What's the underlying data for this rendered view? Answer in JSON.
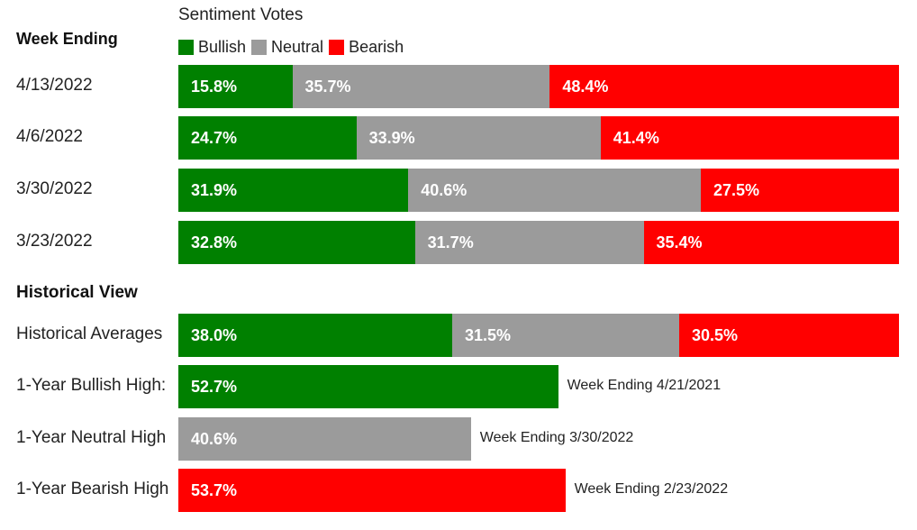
{
  "chart_data": {
    "type": "bar",
    "stacked": true,
    "orientation": "horizontal",
    "title": "Sentiment Votes",
    "colors": {
      "bullish": "#008000",
      "neutral": "#9b9b9b",
      "bearish": "#ff0000"
    },
    "legend": {
      "placement": "top",
      "items": [
        {
          "key": "bullish",
          "label": "Bullish"
        },
        {
          "key": "neutral",
          "label": "Neutral"
        },
        {
          "key": "bearish",
          "label": "Bearish"
        }
      ]
    },
    "weekly": {
      "header": "Week Ending",
      "rows": [
        {
          "label": "4/13/2022",
          "bullish": "15.8%",
          "neutral": "35.7%",
          "bearish": "48.4%",
          "values": [
            15.8,
            35.7,
            48.4
          ]
        },
        {
          "label": "4/6/2022",
          "bullish": "24.7%",
          "neutral": "33.9%",
          "bearish": "41.4%",
          "values": [
            24.7,
            33.9,
            41.4
          ]
        },
        {
          "label": "3/30/2022",
          "bullish": "31.9%",
          "neutral": "40.6%",
          "bearish": "27.5%",
          "values": [
            31.9,
            40.6,
            27.5
          ]
        },
        {
          "label": "3/23/2022",
          "bullish": "32.8%",
          "neutral": "31.7%",
          "bearish": "35.4%",
          "values": [
            32.8,
            31.7,
            35.4
          ]
        }
      ]
    },
    "historical": {
      "header": "Historical View",
      "averages": {
        "label": "Historical Averages",
        "bullish": "38.0%",
        "neutral": "31.5%",
        "bearish": "30.5%",
        "values": [
          38.0,
          31.5,
          30.5
        ]
      },
      "highs": [
        {
          "label": "1-Year Bullish High:",
          "value_text": "52.7%",
          "value": 52.7,
          "series": "bullish",
          "note": "Week Ending 4/21/2021"
        },
        {
          "label": "1-Year Neutral High",
          "value_text": "40.6%",
          "value": 40.6,
          "series": "neutral",
          "note": "Week Ending 3/30/2022"
        },
        {
          "label": "1-Year Bearish High",
          "value_text": "53.7%",
          "value": 53.7,
          "series": "bearish",
          "note": "Week Ending 2/23/2022"
        }
      ]
    }
  }
}
